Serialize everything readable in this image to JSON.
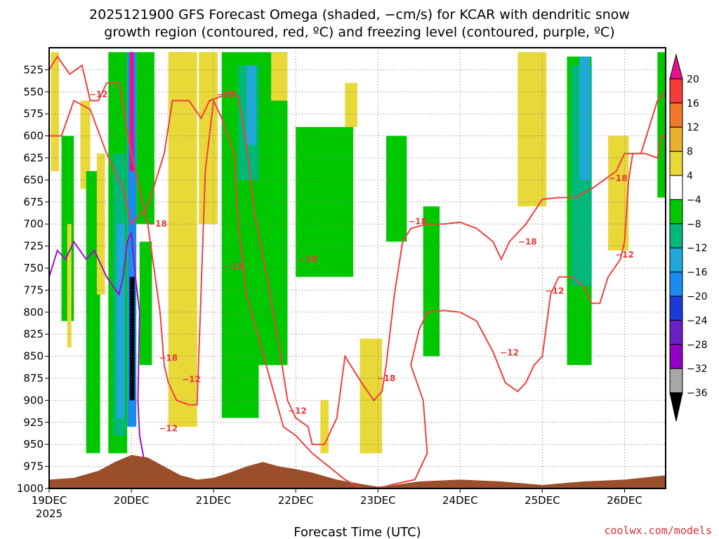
{
  "chart_data": {
    "type": "heatmap",
    "title_line1": "2025121900 GFS Forecast Omega (shaded, −cm/s) for KCAR with dendritic snow",
    "title_line2": "growth region (contoured, red, ºC) and freezing level (contoured, purple, ºC)",
    "xlabel": "Forecast Time (UTC)",
    "credit": "coolwx.com/models",
    "x_unit": "days since 2025-12-19 00Z",
    "xlim": [
      0,
      7.5
    ],
    "x_ticks": [
      {
        "value": 0,
        "label": "19DEC",
        "sub": "2025"
      },
      {
        "value": 1,
        "label": "20DEC",
        "sub": ""
      },
      {
        "value": 2,
        "label": "21DEC",
        "sub": ""
      },
      {
        "value": 3,
        "label": "22DEC",
        "sub": ""
      },
      {
        "value": 4,
        "label": "23DEC",
        "sub": ""
      },
      {
        "value": 5,
        "label": "24DEC",
        "sub": ""
      },
      {
        "value": 6,
        "label": "25DEC",
        "sub": ""
      },
      {
        "value": 7,
        "label": "26DEC",
        "sub": ""
      }
    ],
    "ylabel": "Pressure (hPa)",
    "ylim": [
      1000,
      500
    ],
    "y_ticks": [
      525,
      550,
      575,
      600,
      625,
      650,
      675,
      700,
      725,
      750,
      775,
      800,
      825,
      850,
      875,
      900,
      925,
      950,
      975,
      1000
    ],
    "colorbar": {
      "labels": [
        "20",
        "16",
        "12",
        "8",
        "4",
        "−4",
        "−8",
        "−12",
        "−16",
        "−20",
        "−24",
        "−28",
        "−32",
        "−36"
      ],
      "colors": [
        "#e8108a",
        "#f53a3a",
        "#f07a2a",
        "#e8b030",
        "#e8d838",
        "#ffffff",
        "#00c800",
        "#00b878",
        "#20a8d8",
        "#1a8cf0",
        "#1c3ad8",
        "#6a20c8",
        "#9400c8",
        "#a8a8a8",
        "#000000"
      ]
    },
    "shaded_regions": [
      {
        "name": "yellow-plume-19dec",
        "x": [
          0.02,
          0.12
        ],
        "p": [
          505,
          640
        ],
        "color": "#e8d838"
      },
      {
        "name": "yellow-plume-19dec-b",
        "x": [
          0.38,
          0.5
        ],
        "p": [
          560,
          660
        ],
        "color": "#e8d838"
      },
      {
        "name": "green-column-19dec",
        "x": [
          0.15,
          0.3
        ],
        "p": [
          600,
          810
        ],
        "color": "#00c800"
      },
      {
        "name": "green-column-19dec-b",
        "x": [
          0.45,
          0.62
        ],
        "p": [
          640,
          960
        ],
        "color": "#00c800"
      },
      {
        "name": "yellow-column-19dec-c",
        "x": [
          0.58,
          0.68
        ],
        "p": [
          620,
          780
        ],
        "color": "#e8d838"
      },
      {
        "name": "yellow-column-19dec-d",
        "x": [
          0.22,
          0.27
        ],
        "p": [
          700,
          840
        ],
        "color": "#e8d838"
      },
      {
        "name": "green-column-20dec",
        "x": [
          0.72,
          0.95
        ],
        "p": [
          505,
          960
        ],
        "color": "#00c800"
      },
      {
        "name": "teal-column-20dec",
        "x": [
          0.78,
          0.93
        ],
        "p": [
          620,
          940
        ],
        "color": "#00b878"
      },
      {
        "name": "cyan-column-20dec",
        "x": [
          0.82,
          0.92
        ],
        "p": [
          700,
          920
        ],
        "color": "#20a8d8"
      },
      {
        "name": "core-20dec",
        "x": [
          0.95,
          1.06
        ],
        "p": [
          505,
          930
        ],
        "color": "#1a8cf0"
      },
      {
        "name": "dark-core-20dec",
        "x": [
          0.98,
          1.04
        ],
        "p": [
          760,
          900
        ],
        "color": "#000000"
      },
      {
        "name": "pink-core-20dec",
        "x": [
          0.98,
          1.03
        ],
        "p": [
          505,
          640
        ],
        "color": "#e8108a"
      },
      {
        "name": "green-20dec-b",
        "x": [
          1.06,
          1.28
        ],
        "p": [
          505,
          700
        ],
        "color": "#00c800"
      },
      {
        "name": "green-20dec-c",
        "x": [
          1.1,
          1.25
        ],
        "p": [
          720,
          860
        ],
        "color": "#00c800"
      },
      {
        "name": "red-column-20dec",
        "x": [
          1.58,
          1.66
        ],
        "p": [
          505,
          780
        ],
        "color": "#f53a3a"
      },
      {
        "name": "orange-column-20dec",
        "x": [
          1.52,
          1.72
        ],
        "p": [
          505,
          920
        ],
        "color": "#f07a2a"
      },
      {
        "name": "yellow-column-20dec",
        "x": [
          1.45,
          1.8
        ],
        "p": [
          505,
          930
        ],
        "color": "#e8d838"
      },
      {
        "name": "yellow-21dec",
        "x": [
          1.82,
          2.05
        ],
        "p": [
          505,
          700
        ],
        "color": "#e8d838"
      },
      {
        "name": "green-21dec",
        "x": [
          2.1,
          2.55
        ],
        "p": [
          505,
          920
        ],
        "color": "#00c800"
      },
      {
        "name": "teal-21dec",
        "x": [
          2.3,
          2.55
        ],
        "p": [
          520,
          650
        ],
        "color": "#00b878"
      },
      {
        "name": "cyan-21dec",
        "x": [
          2.4,
          2.52
        ],
        "p": [
          520,
          610
        ],
        "color": "#20a8d8"
      },
      {
        "name": "green-21dec-b",
        "x": [
          2.55,
          2.9
        ],
        "p": [
          505,
          860
        ],
        "color": "#00c800"
      },
      {
        "name": "yellow-21dec-b",
        "x": [
          2.7,
          2.9
        ],
        "p": [
          505,
          560
        ],
        "color": "#e8d838"
      },
      {
        "name": "green-22dec",
        "x": [
          3.0,
          3.7
        ],
        "p": [
          590,
          760
        ],
        "color": "#00c800"
      },
      {
        "name": "yellow-22dec",
        "x": [
          3.6,
          3.75
        ],
        "p": [
          540,
          590
        ],
        "color": "#e8d838"
      },
      {
        "name": "yellow-23dec",
        "x": [
          3.78,
          4.05
        ],
        "p": [
          830,
          960
        ],
        "color": "#e8d838"
      },
      {
        "name": "yellow-22dec-low",
        "x": [
          3.3,
          3.4
        ],
        "p": [
          900,
          960
        ],
        "color": "#e8d838"
      },
      {
        "name": "green-23dec",
        "x": [
          4.1,
          4.35
        ],
        "p": [
          600,
          720
        ],
        "color": "#00c800"
      },
      {
        "name": "green-24dec",
        "x": [
          4.55,
          4.75
        ],
        "p": [
          680,
          850
        ],
        "color": "#00c800"
      },
      {
        "name": "yellow-25dec",
        "x": [
          5.7,
          6.05
        ],
        "p": [
          505,
          680
        ],
        "color": "#e8d838"
      },
      {
        "name": "green-25dec",
        "x": [
          6.3,
          6.6
        ],
        "p": [
          510,
          860
        ],
        "color": "#00c800"
      },
      {
        "name": "teal-25dec",
        "x": [
          6.35,
          6.6
        ],
        "p": [
          520,
          770
        ],
        "color": "#00b878"
      },
      {
        "name": "cyan-25dec",
        "x": [
          6.45,
          6.58
        ],
        "p": [
          510,
          650
        ],
        "color": "#20a8d8"
      },
      {
        "name": "yellow-26dec",
        "x": [
          6.8,
          7.05
        ],
        "p": [
          600,
          730
        ],
        "color": "#e8d838"
      },
      {
        "name": "green-26dec",
        "x": [
          7.4,
          7.5
        ],
        "p": [
          505,
          670
        ],
        "color": "#00c800"
      }
    ],
    "contours": [
      {
        "name": "dgz-minus18-line",
        "level": -18,
        "color": "#f04040",
        "points": [
          [
            0,
            600
          ],
          [
            0.15,
            600
          ],
          [
            0.3,
            560
          ],
          [
            0.5,
            570
          ],
          [
            0.7,
            620
          ],
          [
            0.9,
            660
          ],
          [
            1.0,
            700
          ],
          [
            1.2,
            680
          ],
          [
            1.4,
            620
          ],
          [
            1.5,
            560
          ],
          [
            1.7,
            560
          ],
          [
            1.85,
            580
          ],
          [
            1.95,
            560
          ],
          [
            2.1,
            555
          ],
          [
            2.2,
            550
          ],
          [
            2.3,
            555
          ],
          [
            2.4,
            610
          ],
          [
            2.5,
            690
          ],
          [
            2.65,
            760
          ],
          [
            2.8,
            840
          ],
          [
            2.9,
            900
          ],
          [
            3.0,
            920
          ],
          [
            3.15,
            930
          ],
          [
            3.2,
            950
          ],
          [
            3.35,
            950
          ],
          [
            3.5,
            920
          ],
          [
            3.6,
            850
          ],
          [
            3.8,
            880
          ],
          [
            3.95,
            900
          ],
          [
            4.05,
            890
          ],
          [
            4.1,
            860
          ],
          [
            4.2,
            780
          ],
          [
            4.3,
            720
          ],
          [
            4.4,
            705
          ],
          [
            4.6,
            700
          ],
          [
            4.8,
            700
          ],
          [
            5.0,
            698
          ],
          [
            5.2,
            705
          ],
          [
            5.4,
            720
          ],
          [
            5.5,
            740
          ],
          [
            5.6,
            720
          ],
          [
            5.7,
            710
          ],
          [
            5.8,
            700
          ],
          [
            6.0,
            672
          ],
          [
            6.2,
            670
          ],
          [
            6.4,
            670
          ],
          [
            6.6,
            660
          ],
          [
            6.75,
            650
          ],
          [
            6.9,
            640
          ],
          [
            7.0,
            620
          ],
          [
            7.2,
            620
          ],
          [
            7.4,
            560
          ],
          [
            7.5,
            550
          ]
        ]
      },
      {
        "name": "dgz-minus12-line",
        "level": -12,
        "color": "#f04040",
        "points": [
          [
            0,
            525
          ],
          [
            0.1,
            510
          ],
          [
            0.25,
            530
          ],
          [
            0.4,
            520
          ],
          [
            0.5,
            560
          ],
          [
            0.6,
            560
          ],
          [
            0.7,
            540
          ],
          [
            0.85,
            540
          ],
          [
            1.0,
            620
          ],
          [
            1.2,
            700
          ],
          [
            1.35,
            800
          ],
          [
            1.4,
            860
          ],
          [
            1.45,
            880
          ],
          [
            1.55,
            900
          ],
          [
            1.7,
            905
          ],
          [
            1.8,
            905
          ],
          [
            1.9,
            640
          ],
          [
            2.0,
            560
          ],
          [
            2.1,
            580
          ],
          [
            2.25,
            620
          ],
          [
            2.3,
            700
          ],
          [
            2.4,
            780
          ],
          [
            2.55,
            830
          ],
          [
            2.7,
            880
          ],
          [
            2.85,
            930
          ],
          [
            3.0,
            940
          ],
          [
            3.2,
            960
          ],
          [
            3.4,
            975
          ],
          [
            3.6,
            990
          ],
          [
            3.8,
            1000
          ],
          [
            4.0,
            1000
          ],
          [
            4.2,
            995
          ],
          [
            4.45,
            990
          ],
          [
            4.6,
            960
          ],
          [
            4.55,
            900
          ],
          [
            4.4,
            860
          ],
          [
            4.5,
            820
          ],
          [
            4.6,
            800
          ],
          [
            4.8,
            798
          ],
          [
            5.0,
            800
          ],
          [
            5.2,
            810
          ],
          [
            5.4,
            845
          ],
          [
            5.55,
            880
          ],
          [
            5.7,
            890
          ],
          [
            5.8,
            880
          ],
          [
            5.9,
            860
          ],
          [
            6.0,
            850
          ],
          [
            6.1,
            780
          ],
          [
            6.2,
            760
          ],
          [
            6.35,
            760
          ],
          [
            6.5,
            770
          ],
          [
            6.6,
            790
          ],
          [
            6.7,
            790
          ],
          [
            6.8,
            760
          ],
          [
            6.95,
            740
          ],
          [
            7.0,
            720
          ],
          [
            7.05,
            650
          ],
          [
            7.1,
            620
          ],
          [
            7.25,
            620
          ],
          [
            7.4,
            625
          ],
          [
            7.45,
            600
          ],
          [
            7.5,
            600
          ]
        ]
      },
      {
        "name": "freezing-level-line",
        "level": 0,
        "color": "#9a10c8",
        "points": [
          [
            0,
            760
          ],
          [
            0.1,
            730
          ],
          [
            0.2,
            740
          ],
          [
            0.3,
            720
          ],
          [
            0.45,
            740
          ],
          [
            0.55,
            730
          ],
          [
            0.7,
            760
          ],
          [
            0.85,
            780
          ],
          [
            0.9,
            760
          ],
          [
            0.95,
            720
          ],
          [
            1.0,
            710
          ],
          [
            1.05,
            760
          ],
          [
            1.1,
            800
          ],
          [
            1.08,
            900
          ],
          [
            1.1,
            940
          ],
          [
            1.15,
            965
          ]
        ]
      }
    ],
    "contour_labels": [
      {
        "text": "−12",
        "x": 0.6,
        "p": 553
      },
      {
        "text": "−18",
        "x": 2.15,
        "p": 553
      },
      {
        "text": "−18",
        "x": 1.32,
        "p": 700
      },
      {
        "text": "−12",
        "x": 2.25,
        "p": 748
      },
      {
        "text": "−18",
        "x": 3.15,
        "p": 740
      },
      {
        "text": "−18",
        "x": 1.45,
        "p": 852
      },
      {
        "text": "−12",
        "x": 1.73,
        "p": 876
      },
      {
        "text": "−12",
        "x": 1.45,
        "p": 932
      },
      {
        "text": "−12",
        "x": 3.02,
        "p": 912
      },
      {
        "text": "−18",
        "x": 4.1,
        "p": 875
      },
      {
        "text": "−18",
        "x": 4.48,
        "p": 697
      },
      {
        "text": "−12",
        "x": 5.6,
        "p": 846
      },
      {
        "text": "−18",
        "x": 5.82,
        "p": 720
      },
      {
        "text": "−12",
        "x": 6.15,
        "p": 776
      },
      {
        "text": "−18",
        "x": 6.92,
        "p": 648
      },
      {
        "text": "−12",
        "x": 7.0,
        "p": 735
      }
    ],
    "terrain": {
      "color": "#9a4e2a",
      "points": [
        [
          0,
          990
        ],
        [
          0.3,
          988
        ],
        [
          0.6,
          980
        ],
        [
          0.8,
          970
        ],
        [
          1.0,
          962
        ],
        [
          1.2,
          965
        ],
        [
          1.4,
          975
        ],
        [
          1.6,
          985
        ],
        [
          1.8,
          990
        ],
        [
          2.0,
          988
        ],
        [
          2.2,
          982
        ],
        [
          2.4,
          975
        ],
        [
          2.6,
          970
        ],
        [
          2.8,
          975
        ],
        [
          3.0,
          978
        ],
        [
          3.2,
          982
        ],
        [
          3.5,
          990
        ],
        [
          3.8,
          995
        ],
        [
          4.0,
          998
        ],
        [
          4.2,
          996
        ],
        [
          4.5,
          992
        ],
        [
          5.0,
          990
        ],
        [
          5.5,
          992
        ],
        [
          6.0,
          996
        ],
        [
          6.5,
          992
        ],
        [
          7.0,
          990
        ],
        [
          7.5,
          985
        ]
      ]
    }
  }
}
